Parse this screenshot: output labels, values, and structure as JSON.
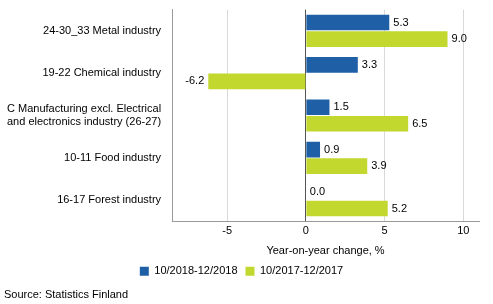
{
  "chart_data": {
    "type": "bar",
    "orientation": "horizontal",
    "categories": [
      "24-30_33 Metal industry",
      "19-22 Chemical industry",
      "C Manufacturing excl. Electrical and electronics industry (26-27)",
      "10-11 Food industry",
      "16-17 Forest industry"
    ],
    "series": [
      {
        "name": "10/2018-12/2018",
        "color": "#1f5fa5",
        "values": [
          5.3,
          3.3,
          1.5,
          0.9,
          0.0
        ],
        "value_labels": [
          "5.3",
          "3.3",
          "1.5",
          "0.9",
          "0.0"
        ]
      },
      {
        "name": "10/2017-12/2017",
        "color": "#c2d82e",
        "values": [
          9.0,
          -6.2,
          6.5,
          3.9,
          5.2
        ],
        "value_labels": [
          "9.0",
          "-6.2",
          "6.5",
          "3.9",
          "5.2"
        ]
      }
    ],
    "x_label": "Year-on-year change, %",
    "xlim": [
      -8.5,
      11
    ],
    "xticks": [
      -5,
      0,
      5,
      10
    ],
    "grid": true,
    "data_labels": true,
    "legend": "bottom",
    "annotations": [
      "Source: Statistics Finland"
    ]
  }
}
